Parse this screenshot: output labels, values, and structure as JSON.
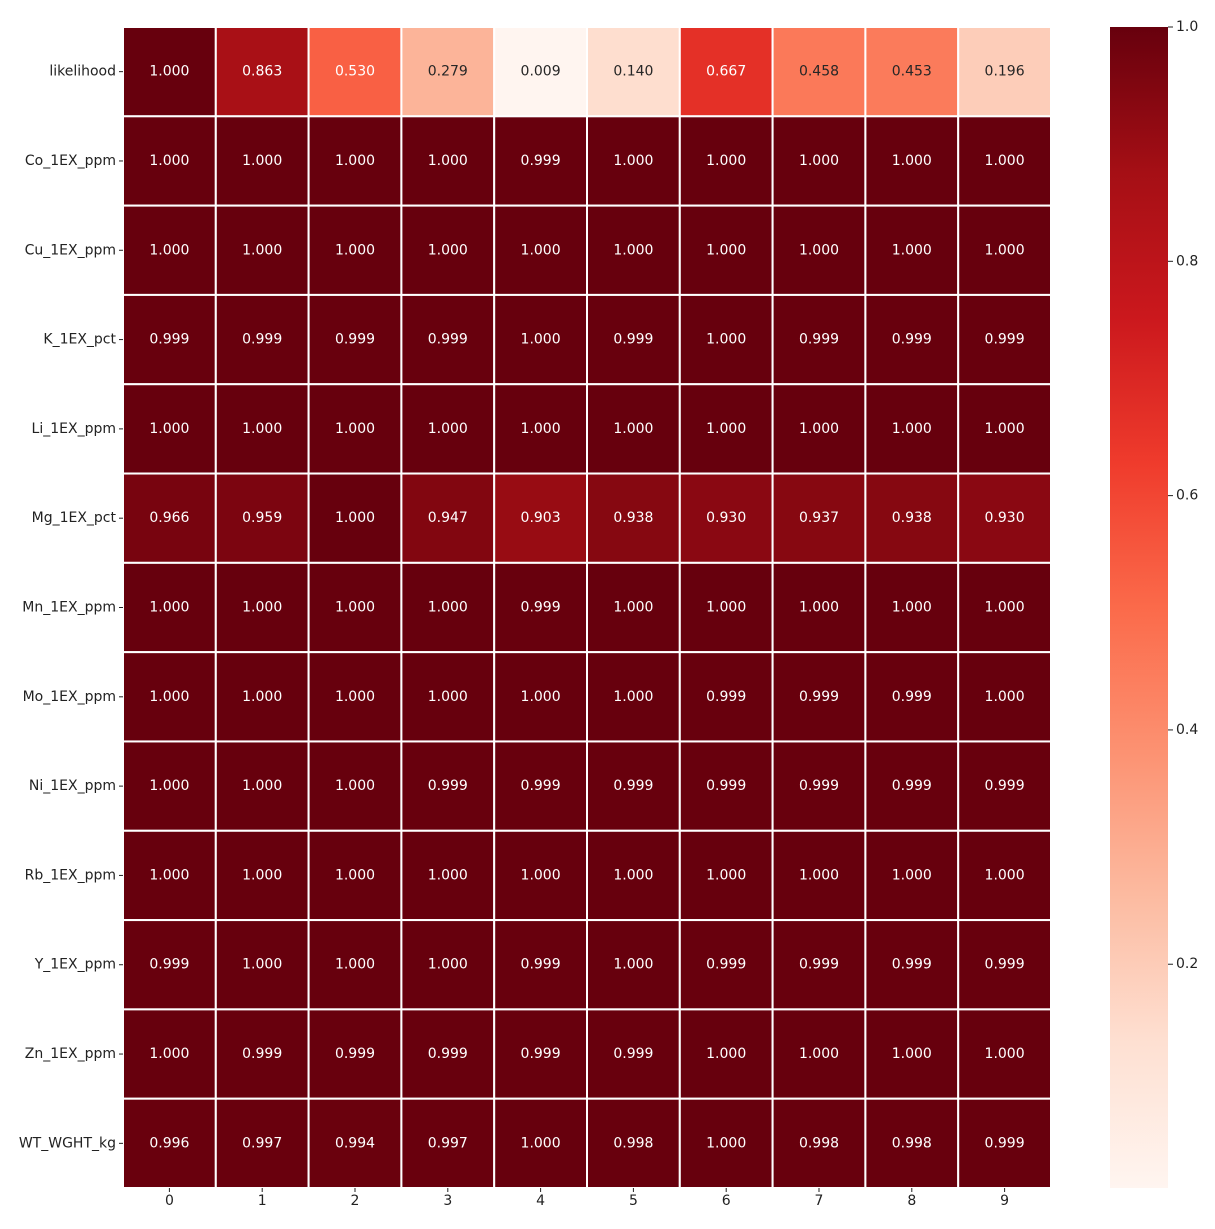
{
  "chart_data": {
    "type": "heatmap",
    "title": "",
    "xlabel": "",
    "ylabel": "",
    "x_categories": [
      "0",
      "1",
      "2",
      "3",
      "4",
      "5",
      "6",
      "7",
      "8",
      "9"
    ],
    "y_categories": [
      "likelihood",
      "Co_1EX_ppm",
      "Cu_1EX_ppm",
      "K_1EX_pct",
      "Li_1EX_ppm",
      "Mg_1EX_pct",
      "Mn_1EX_ppm",
      "Mo_1EX_ppm",
      "Ni_1EX_ppm",
      "Rb_1EX_ppm",
      "Y_1EX_ppm",
      "Zn_1EX_ppm",
      "WT_WGHT_kg"
    ],
    "values": [
      [
        1.0,
        0.863,
        0.53,
        0.279,
        0.009,
        0.14,
        0.667,
        0.458,
        0.453,
        0.196
      ],
      [
        1.0,
        1.0,
        1.0,
        1.0,
        0.999,
        1.0,
        1.0,
        1.0,
        1.0,
        1.0
      ],
      [
        1.0,
        1.0,
        1.0,
        1.0,
        1.0,
        1.0,
        1.0,
        1.0,
        1.0,
        1.0
      ],
      [
        0.999,
        0.999,
        0.999,
        0.999,
        1.0,
        0.999,
        1.0,
        0.999,
        0.999,
        0.999
      ],
      [
        1.0,
        1.0,
        1.0,
        1.0,
        1.0,
        1.0,
        1.0,
        1.0,
        1.0,
        1.0
      ],
      [
        0.966,
        0.959,
        1.0,
        0.947,
        0.903,
        0.938,
        0.93,
        0.937,
        0.938,
        0.93
      ],
      [
        1.0,
        1.0,
        1.0,
        1.0,
        0.999,
        1.0,
        1.0,
        1.0,
        1.0,
        1.0
      ],
      [
        1.0,
        1.0,
        1.0,
        1.0,
        1.0,
        1.0,
        0.999,
        0.999,
        0.999,
        1.0
      ],
      [
        1.0,
        1.0,
        1.0,
        0.999,
        0.999,
        0.999,
        0.999,
        0.999,
        0.999,
        0.999
      ],
      [
        1.0,
        1.0,
        1.0,
        1.0,
        1.0,
        1.0,
        1.0,
        1.0,
        1.0,
        1.0
      ],
      [
        0.999,
        1.0,
        1.0,
        1.0,
        0.999,
        1.0,
        0.999,
        0.999,
        0.999,
        0.999
      ],
      [
        1.0,
        0.999,
        0.999,
        0.999,
        0.999,
        0.999,
        1.0,
        1.0,
        1.0,
        1.0
      ],
      [
        0.996,
        0.997,
        0.994,
        0.997,
        1.0,
        0.998,
        1.0,
        0.998,
        0.998,
        0.999
      ]
    ],
    "value_format": "3 decimals",
    "colormap": "Reds",
    "colorbar": {
      "vmin": 0.009,
      "vmax": 1.0,
      "ticks": [
        0.2,
        0.4,
        0.6,
        0.8,
        1.0
      ],
      "tick_labels": [
        "0.2",
        "0.4",
        "0.6",
        "0.8",
        "1.0"
      ]
    },
    "grid_line_color": "#ffffff"
  }
}
